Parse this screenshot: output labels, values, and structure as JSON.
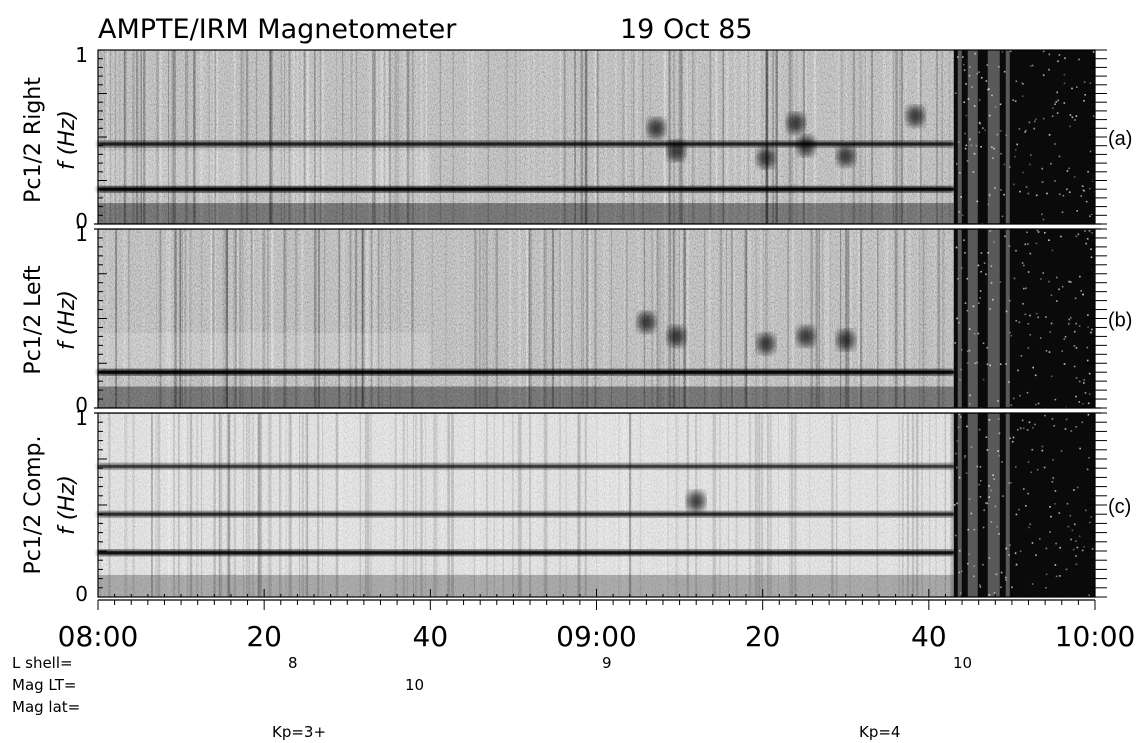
{
  "title": "AMPTE/IRM Magnetometer",
  "date": "19 Oct 85",
  "chart_data": {
    "type": "heatmap",
    "x_range": [
      "08:00",
      "10:00"
    ],
    "x_ticks": [
      "08:00",
      "20",
      "40",
      "09:00",
      "20",
      "40",
      "10:00"
    ],
    "y_range": [
      0,
      1
    ],
    "y_ticks": [
      "1",
      "0"
    ],
    "y_unit": "f (Hz)",
    "panels": [
      {
        "ylabel": "Pc1/2 Right",
        "unit_label": "f (Hz)",
        "label": "(a)",
        "background": "#c8c8c8",
        "bands": [
          {
            "f": 0.2,
            "strength": 0.95
          },
          {
            "f": 0.46,
            "strength": 0.55
          }
        ],
        "blobs": [
          {
            "t": 0.56,
            "f": 0.55
          },
          {
            "t": 0.58,
            "f": 0.42
          },
          {
            "t": 0.67,
            "f": 0.38
          },
          {
            "t": 0.7,
            "f": 0.58
          },
          {
            "t": 0.71,
            "f": 0.45
          },
          {
            "t": 0.75,
            "f": 0.39
          },
          {
            "t": 0.82,
            "f": 0.62
          }
        ]
      },
      {
        "ylabel": "Pc1/2 Left",
        "unit_label": "f (Hz)",
        "label": "(b)",
        "background": "#c8c8c8",
        "bands": [
          {
            "f": 0.2,
            "strength": 0.95
          }
        ],
        "blobs": [
          {
            "t": 0.55,
            "f": 0.48
          },
          {
            "t": 0.58,
            "f": 0.4
          },
          {
            "t": 0.67,
            "f": 0.36
          },
          {
            "t": 0.71,
            "f": 0.4
          },
          {
            "t": 0.75,
            "f": 0.38
          }
        ]
      },
      {
        "ylabel": "Pc1/2 Comp.",
        "unit_label": "f (Hz)",
        "label": "(c)",
        "background": "#e6e6e6",
        "bands": [
          {
            "f": 0.24,
            "strength": 0.8
          },
          {
            "f": 0.45,
            "strength": 0.5
          },
          {
            "f": 0.71,
            "strength": 0.35
          }
        ],
        "blobs": [
          {
            "t": 0.6,
            "f": 0.52
          }
        ]
      }
    ],
    "dark_region": {
      "start": "09:43",
      "end": "10:00"
    }
  },
  "ephemeris": {
    "labels": [
      "L shell=",
      "Mag LT=",
      "Mag lat="
    ],
    "l_shell_values": [
      "8",
      "9",
      "10"
    ],
    "mag_lt_values": [
      "10"
    ],
    "kp": [
      "Kp=3+",
      "Kp=4"
    ]
  }
}
